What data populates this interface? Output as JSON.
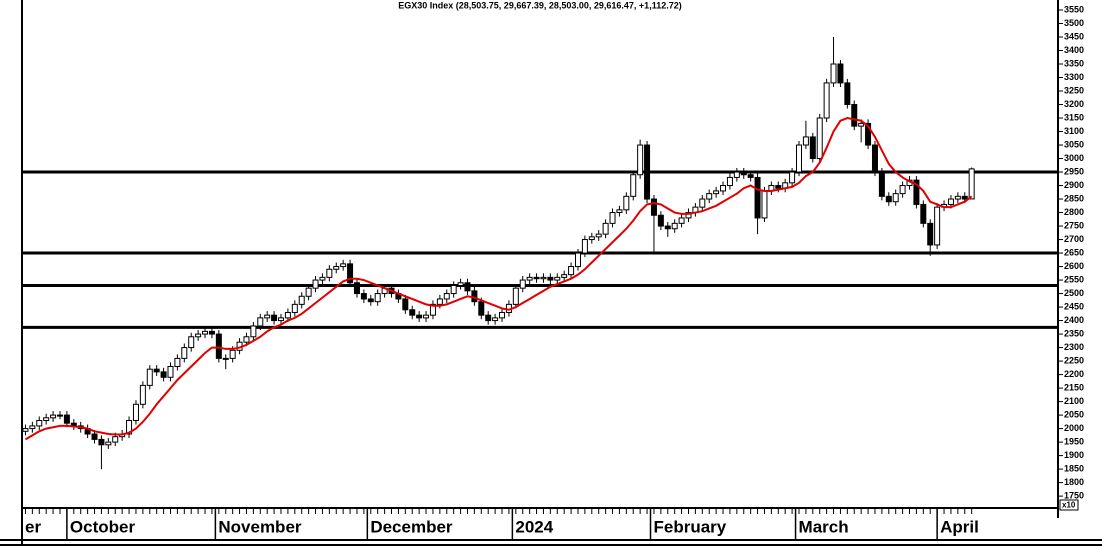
{
  "chart_data": {
    "type": "candlestick",
    "title": "EGX30 Index (28,503.75, 29,667.39, 28,503.00, 29,616.47, +1,112.72)",
    "scale_note": "x10",
    "open": [
      1990,
      2000,
      2010,
      2030,
      2040,
      2050,
      2050,
      2020,
      2010,
      2000,
      1980,
      1960,
      1940,
      1950,
      1970,
      1980,
      2030,
      2090,
      2160,
      2220,
      2210,
      2190,
      2230,
      2260,
      2300,
      2340,
      2350,
      2360,
      2350,
      2260,
      2260,
      2290,
      2320,
      2340,
      2380,
      2410,
      2420,
      2400,
      2410,
      2430,
      2460,
      2490,
      2520,
      2550,
      2560,
      2590,
      2600,
      2610,
      2540,
      2500,
      2480,
      2470,
      2500,
      2520,
      2500,
      2480,
      2440,
      2420,
      2410,
      2420,
      2460,
      2480,
      2500,
      2530,
      2540,
      2510,
      2470,
      2420,
      2400,
      2410,
      2430,
      2460,
      2520,
      2550,
      2560,
      2555,
      2560,
      2550,
      2560,
      2570,
      2600,
      2650,
      2700,
      2710,
      2720,
      2760,
      2800,
      2810,
      2860,
      2940,
      3050,
      2850,
      2790,
      2750,
      2740,
      2760,
      2780,
      2800,
      2820,
      2850,
      2870,
      2880,
      2900,
      2930,
      2950,
      2940,
      2930,
      2780,
      2880,
      2900,
      2890,
      2910,
      2950,
      3050,
      3080,
      3000,
      3150,
      3280,
      3350,
      3280,
      3200,
      3120,
      3130,
      3050,
      2950,
      2860,
      2840,
      2870,
      2900,
      2920,
      2830,
      2760,
      2680,
      2820,
      2830,
      2850,
      2860,
      2850.4
    ],
    "high": [
      2015,
      2025,
      2045,
      2055,
      2065,
      2065,
      2065,
      2035,
      2025,
      2015,
      1995,
      1975,
      1965,
      1985,
      1995,
      2045,
      2105,
      2175,
      2235,
      2235,
      2225,
      2245,
      2275,
      2315,
      2355,
      2365,
      2375,
      2375,
      2365,
      2275,
      2305,
      2335,
      2355,
      2395,
      2425,
      2435,
      2435,
      2425,
      2445,
      2475,
      2505,
      2535,
      2565,
      2575,
      2605,
      2615,
      2625,
      2625,
      2555,
      2515,
      2495,
      2515,
      2535,
      2535,
      2515,
      2495,
      2455,
      2435,
      2435,
      2475,
      2495,
      2515,
      2545,
      2555,
      2555,
      2525,
      2485,
      2435,
      2425,
      2445,
      2475,
      2535,
      2565,
      2575,
      2575,
      2575,
      2575,
      2575,
      2585,
      2615,
      2665,
      2715,
      2725,
      2735,
      2775,
      2815,
      2825,
      2875,
      2955,
      3070,
      3065,
      2865,
      2805,
      2765,
      2775,
      2795,
      2815,
      2835,
      2865,
      2885,
      2895,
      2915,
      2945,
      2965,
      2965,
      2955,
      2945,
      2895,
      2915,
      2915,
      2925,
      2965,
      3065,
      3140,
      3095,
      3165,
      3295,
      3450,
      3365,
      3295,
      3215,
      3145,
      3145,
      3065,
      2965,
      2875,
      2885,
      2915,
      2935,
      2935,
      2845,
      2775,
      2835,
      2845,
      2865,
      2875,
      2875,
      2966.7
    ],
    "low": [
      1975,
      1985,
      1995,
      2015,
      2025,
      2035,
      2005,
      1995,
      1985,
      1965,
      1945,
      1850,
      1925,
      1935,
      1955,
      1965,
      2015,
      2075,
      2145,
      2195,
      2175,
      2175,
      2215,
      2245,
      2285,
      2325,
      2335,
      2335,
      2245,
      2220,
      2245,
      2275,
      2305,
      2325,
      2365,
      2395,
      2385,
      2385,
      2395,
      2415,
      2445,
      2475,
      2505,
      2535,
      2545,
      2575,
      2585,
      2525,
      2485,
      2465,
      2455,
      2455,
      2485,
      2485,
      2465,
      2425,
      2405,
      2395,
      2395,
      2405,
      2445,
      2465,
      2485,
      2515,
      2495,
      2455,
      2405,
      2385,
      2385,
      2395,
      2415,
      2445,
      2505,
      2535,
      2540,
      2540,
      2535,
      2535,
      2545,
      2555,
      2585,
      2635,
      2685,
      2695,
      2705,
      2745,
      2785,
      2795,
      2845,
      2925,
      2835,
      2650,
      2735,
      2710,
      2725,
      2745,
      2765,
      2785,
      2805,
      2835,
      2855,
      2865,
      2885,
      2915,
      2925,
      2915,
      2720,
      2765,
      2865,
      2875,
      2875,
      2895,
      2935,
      3035,
      2985,
      2985,
      3135,
      3265,
      3265,
      3185,
      3105,
      3060,
      3035,
      2935,
      2845,
      2825,
      2825,
      2855,
      2885,
      2815,
      2745,
      2640,
      2665,
      2805,
      2815,
      2835,
      2835,
      2850.3
    ],
    "close": [
      2000,
      2010,
      2030,
      2040,
      2050,
      2050,
      2020,
      2010,
      2000,
      1980,
      1960,
      1940,
      1950,
      1970,
      1980,
      2030,
      2090,
      2160,
      2220,
      2210,
      2190,
      2230,
      2260,
      2300,
      2340,
      2350,
      2360,
      2350,
      2260,
      2260,
      2290,
      2320,
      2340,
      2380,
      2410,
      2420,
      2400,
      2410,
      2430,
      2460,
      2490,
      2520,
      2550,
      2560,
      2590,
      2600,
      2610,
      2540,
      2500,
      2480,
      2470,
      2500,
      2520,
      2500,
      2480,
      2440,
      2420,
      2410,
      2420,
      2460,
      2480,
      2500,
      2530,
      2540,
      2510,
      2470,
      2420,
      2400,
      2410,
      2430,
      2460,
      2520,
      2550,
      2560,
      2555,
      2560,
      2550,
      2560,
      2570,
      2600,
      2650,
      2700,
      2710,
      2720,
      2760,
      2800,
      2810,
      2860,
      2940,
      3050,
      2850,
      2790,
      2750,
      2740,
      2760,
      2780,
      2800,
      2820,
      2850,
      2870,
      2880,
      2900,
      2930,
      2950,
      2940,
      2930,
      2780,
      2880,
      2900,
      2890,
      2910,
      2950,
      3050,
      3080,
      3000,
      3150,
      3280,
      3350,
      3280,
      3200,
      3120,
      3130,
      3050,
      2950,
      2860,
      2840,
      2870,
      2900,
      2920,
      2830,
      2760,
      2680,
      2820,
      2830,
      2850,
      2860,
      2850,
      2961.6
    ],
    "moving_average": {
      "color": "#e00000",
      "values": [
        1960,
        1975,
        1990,
        2000,
        2005,
        2010,
        2010,
        2008,
        2005,
        2000,
        1990,
        1985,
        1980,
        1978,
        1978,
        1985,
        2000,
        2025,
        2055,
        2090,
        2120,
        2150,
        2180,
        2205,
        2230,
        2255,
        2280,
        2300,
        2300,
        2295,
        2295,
        2300,
        2310,
        2325,
        2340,
        2360,
        2375,
        2385,
        2400,
        2410,
        2425,
        2445,
        2465,
        2485,
        2505,
        2525,
        2545,
        2555,
        2555,
        2550,
        2540,
        2530,
        2520,
        2510,
        2500,
        2490,
        2480,
        2470,
        2460,
        2455,
        2455,
        2460,
        2470,
        2480,
        2490,
        2485,
        2475,
        2465,
        2455,
        2445,
        2440,
        2450,
        2465,
        2480,
        2495,
        2510,
        2525,
        2535,
        2545,
        2555,
        2570,
        2590,
        2615,
        2640,
        2665,
        2690,
        2715,
        2740,
        2770,
        2805,
        2830,
        2835,
        2830,
        2815,
        2800,
        2795,
        2795,
        2800,
        2805,
        2815,
        2825,
        2840,
        2855,
        2870,
        2890,
        2900,
        2885,
        2880,
        2880,
        2885,
        2890,
        2895,
        2910,
        2935,
        2950,
        2985,
        3040,
        3100,
        3140,
        3150,
        3145,
        3140,
        3120,
        3080,
        3030,
        2980,
        2950,
        2930,
        2915,
        2905,
        2880,
        2840,
        2830,
        2820,
        2820,
        2830,
        2840,
        2860
      ]
    },
    "levels": [
      2950,
      2650,
      2530,
      2375
    ],
    "xlim": [
      0,
      150
    ],
    "xticks": [
      {
        "value": 0,
        "label": "er"
      },
      {
        "value": 6.5,
        "label": "October"
      },
      {
        "value": 28,
        "label": "November"
      },
      {
        "value": 50,
        "label": "December"
      },
      {
        "value": 71,
        "label": "2024"
      },
      {
        "value": 91,
        "label": "February"
      },
      {
        "value": 112,
        "label": "March"
      },
      {
        "value": 132.5,
        "label": "April"
      }
    ],
    "ylim": [
      1706,
      3587
    ],
    "yticks": [
      1750,
      1800,
      1850,
      1900,
      1950,
      2000,
      2050,
      2100,
      2150,
      2200,
      2250,
      2300,
      2350,
      2400,
      2450,
      2500,
      2550,
      2600,
      2650,
      2700,
      2750,
      2800,
      2850,
      2900,
      2950,
      3000,
      3050,
      3100,
      3150,
      3200,
      3250,
      3300,
      3350,
      3400,
      3450,
      3500,
      3550
    ]
  }
}
